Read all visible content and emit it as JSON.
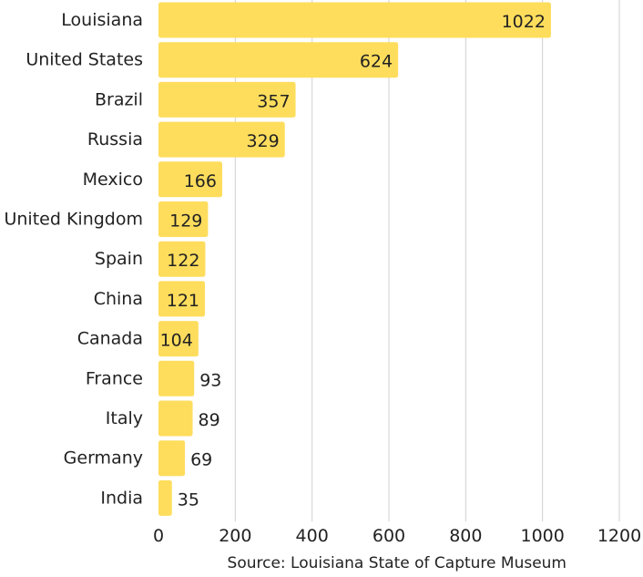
{
  "chart_data": {
    "type": "bar",
    "orientation": "horizontal",
    "categories": [
      "Louisiana",
      "United States",
      "Brazil",
      "Russia",
      "Mexico",
      "United Kingdom",
      "Spain",
      "China",
      "Canada",
      "France",
      "Italy",
      "Germany",
      "India"
    ],
    "values": [
      1022,
      624,
      357,
      329,
      166,
      129,
      122,
      121,
      104,
      93,
      89,
      69,
      35
    ],
    "value_labels": [
      "1022",
      "624",
      "357",
      "329",
      "166",
      "129",
      "122",
      "121",
      "104",
      "93",
      "89",
      "69",
      "35"
    ],
    "xlim": [
      0,
      1200
    ],
    "x_ticks": [
      0,
      200,
      400,
      600,
      800,
      1000,
      1200
    ],
    "x_tick_labels": [
      "0",
      "200",
      "400",
      "600",
      "800",
      "1000",
      "1200"
    ],
    "grid": "vertical",
    "bar_color": "#fedd5d",
    "source": "Source: Louisiana State of Capture Museum"
  }
}
